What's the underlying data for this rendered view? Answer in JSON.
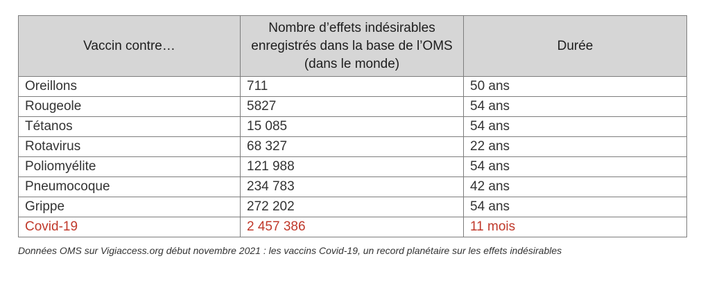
{
  "table": {
    "headers": [
      "Vaccin contre…",
      "Nombre d’effets indésirables enregistrés dans la base de l’OMS (dans le monde)",
      "Durée"
    ],
    "rows": [
      [
        "Oreillons",
        "711",
        "50 ans"
      ],
      [
        "Rougeole",
        "5827",
        "54 ans"
      ],
      [
        "Tétanos",
        "15 085",
        "54 ans"
      ],
      [
        "Rotavirus",
        "68 327",
        "22 ans"
      ],
      [
        "Poliomyélite",
        "121 988",
        "54 ans"
      ],
      [
        "Pneumocoque",
        "234 783",
        "42 ans"
      ],
      [
        "Grippe",
        "272 202",
        "54 ans"
      ],
      [
        "Covid-19",
        "2 457 386",
        "11 mois"
      ]
    ]
  },
  "caption": "Données OMS sur Vigiaccess.org début novembre 2021 : les vaccins Covid-19, un record planétaire sur les effets indésirables",
  "colors": {
    "header_background": "#d6d6d6",
    "highlight_text": "#c0392b"
  }
}
